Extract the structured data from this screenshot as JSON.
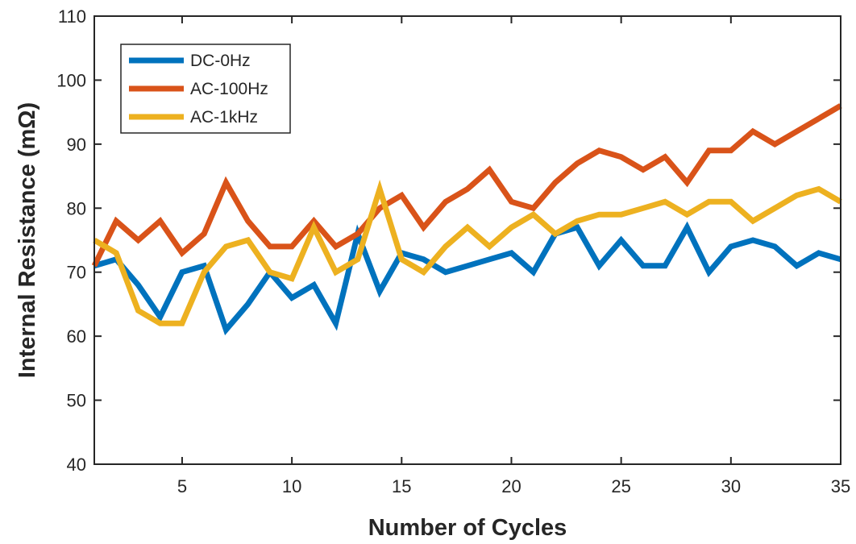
{
  "chart_data": {
    "type": "line",
    "xlabel": "Number of Cycles",
    "ylabel": "Internal Resistance (mΩ)",
    "xlim": [
      1,
      35
    ],
    "ylim": [
      40,
      110
    ],
    "xticks": [
      5,
      10,
      15,
      20,
      25,
      30,
      35
    ],
    "yticks": [
      40,
      50,
      60,
      70,
      80,
      90,
      100,
      110
    ],
    "grid": false,
    "legend_position": "top-left",
    "x": [
      1,
      2,
      3,
      4,
      5,
      6,
      7,
      8,
      9,
      10,
      11,
      12,
      13,
      14,
      15,
      16,
      17,
      18,
      19,
      20,
      21,
      22,
      23,
      24,
      25,
      26,
      27,
      28,
      29,
      30,
      31,
      32,
      33,
      34,
      35
    ],
    "series": [
      {
        "name": "DC-0Hz",
        "color": "#0072BD",
        "values": [
          71,
          72,
          68,
          63,
          70,
          71,
          61,
          65,
          70,
          66,
          68,
          62,
          76,
          67,
          73,
          72,
          70,
          71,
          72,
          73,
          70,
          76,
          77,
          71,
          75,
          71,
          71,
          77,
          70,
          74,
          75,
          74,
          71,
          73,
          72
        ]
      },
      {
        "name": "AC-100Hz",
        "color": "#D95319",
        "values": [
          71,
          78,
          75,
          78,
          73,
          76,
          84,
          78,
          74,
          74,
          78,
          74,
          76,
          80,
          82,
          77,
          81,
          83,
          86,
          81,
          80,
          84,
          87,
          89,
          88,
          86,
          88,
          84,
          89,
          89,
          92,
          90,
          92,
          94,
          96
        ]
      },
      {
        "name": "AC-1kHz",
        "color": "#EDB120",
        "values": [
          75,
          73,
          64,
          62,
          62,
          70,
          74,
          75,
          70,
          69,
          77,
          70,
          72,
          83,
          72,
          70,
          74,
          77,
          74,
          77,
          79,
          76,
          78,
          79,
          79,
          80,
          81,
          79,
          81,
          81,
          78,
          80,
          82,
          83,
          81
        ]
      }
    ]
  }
}
